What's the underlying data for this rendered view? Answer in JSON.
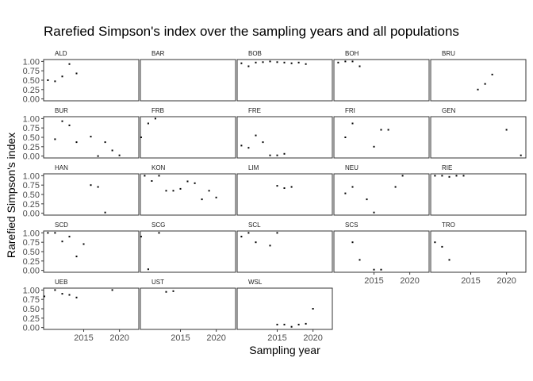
{
  "chart_data": {
    "type": "scatter",
    "title": "Rarefied Simpson's index over the sampling years and all populations",
    "xlabel": "Sampling year",
    "ylabel": "Rarefied Simpson's index",
    "xlim": [
      2009.4,
      2022.7
    ],
    "ylim": [
      -0.05,
      1.05
    ],
    "x_ticks": [
      2015,
      2020
    ],
    "x_tick_labels": [
      "2015",
      "2020"
    ],
    "y_ticks": [
      0,
      0.25,
      0.5,
      0.75,
      1
    ],
    "y_tick_labels": [
      "0.00",
      "0.25",
      "0.50",
      "0.75",
      "1.00"
    ],
    "facet_layout": {
      "columns": 5,
      "rows": 5
    },
    "facets": [
      {
        "name": "ALD",
        "points": [
          [
            2010,
            0.5
          ],
          [
            2011,
            0.47
          ],
          [
            2012,
            0.6
          ],
          [
            2013,
            0.93
          ],
          [
            2014,
            0.68
          ]
        ]
      },
      {
        "name": "BAR",
        "points": []
      },
      {
        "name": "BOB",
        "points": [
          [
            2010,
            0.95
          ],
          [
            2011,
            0.87
          ],
          [
            2012,
            0.97
          ],
          [
            2013,
            0.98
          ],
          [
            2014,
            1.0
          ],
          [
            2015,
            0.98
          ],
          [
            2016,
            0.97
          ],
          [
            2017,
            0.95
          ],
          [
            2018,
            0.97
          ],
          [
            2019,
            0.93
          ]
        ]
      },
      {
        "name": "BOH",
        "points": [
          [
            2010,
            0.97
          ],
          [
            2011,
            1.0
          ],
          [
            2012,
            1.0
          ],
          [
            2013,
            0.87
          ]
        ]
      },
      {
        "name": "BRU",
        "points": [
          [
            2016,
            0.25
          ],
          [
            2017,
            0.4
          ],
          [
            2018,
            0.65
          ]
        ]
      },
      {
        "name": "BUR",
        "points": [
          [
            2011,
            0.45
          ],
          [
            2012,
            0.93
          ],
          [
            2013,
            0.82
          ],
          [
            2014,
            0.37
          ],
          [
            2016,
            0.52
          ],
          [
            2017,
            0.0
          ],
          [
            2018,
            0.37
          ],
          [
            2019,
            0.15
          ],
          [
            2020,
            0.02
          ]
        ]
      },
      {
        "name": "FRB",
        "points": [
          [
            2009.5,
            0.5
          ],
          [
            2010.5,
            0.87
          ],
          [
            2011.5,
            1.0
          ]
        ]
      },
      {
        "name": "FRE",
        "points": [
          [
            2010,
            0.28
          ],
          [
            2011,
            0.22
          ],
          [
            2012,
            0.55
          ],
          [
            2013,
            0.37
          ],
          [
            2014,
            0.02
          ],
          [
            2015,
            0.02
          ],
          [
            2016,
            0.06
          ]
        ]
      },
      {
        "name": "FRI",
        "points": [
          [
            2011,
            0.5
          ],
          [
            2012,
            0.87
          ],
          [
            2015,
            0.25
          ],
          [
            2016,
            0.7
          ],
          [
            2017,
            0.7
          ]
        ]
      },
      {
        "name": "GEN",
        "points": [
          [
            2020,
            0.7
          ],
          [
            2022,
            0.02
          ]
        ]
      },
      {
        "name": "HAN",
        "points": [
          [
            2016,
            0.75
          ],
          [
            2017,
            0.7
          ],
          [
            2018,
            0.02
          ]
        ]
      },
      {
        "name": "KON",
        "points": [
          [
            2010,
            1.0
          ],
          [
            2011,
            0.86
          ],
          [
            2012,
            1.0
          ],
          [
            2013,
            0.6
          ],
          [
            2014,
            0.6
          ],
          [
            2015,
            0.65
          ],
          [
            2016,
            0.85
          ],
          [
            2017,
            0.8
          ],
          [
            2018,
            0.37
          ],
          [
            2019,
            0.6
          ],
          [
            2020,
            0.42
          ]
        ]
      },
      {
        "name": "LIM",
        "points": [
          [
            2015,
            0.73
          ],
          [
            2016,
            0.67
          ],
          [
            2017,
            0.7
          ]
        ]
      },
      {
        "name": "NEU",
        "points": [
          [
            2011,
            0.53
          ],
          [
            2012,
            0.7
          ],
          [
            2014,
            0.37
          ],
          [
            2015,
            0.02
          ],
          [
            2018,
            0.7
          ],
          [
            2019,
            1.0
          ]
        ]
      },
      {
        "name": "RIE",
        "points": [
          [
            2010,
            1.0
          ],
          [
            2011,
            1.0
          ],
          [
            2012,
            0.97
          ],
          [
            2013,
            1.0
          ],
          [
            2014,
            1.0
          ]
        ]
      },
      {
        "name": "SCD",
        "points": [
          [
            2010,
            1.0
          ],
          [
            2011,
            1.0
          ],
          [
            2012,
            0.77
          ],
          [
            2013,
            0.9
          ],
          [
            2014,
            0.37
          ],
          [
            2015,
            0.7
          ]
        ]
      },
      {
        "name": "SCG",
        "points": [
          [
            2009.5,
            0.9
          ],
          [
            2010.5,
            0.03
          ],
          [
            2012,
            1.0
          ]
        ]
      },
      {
        "name": "SCL",
        "points": [
          [
            2010,
            0.9
          ],
          [
            2011,
            1.0
          ],
          [
            2012,
            0.75
          ],
          [
            2014,
            0.66
          ],
          [
            2015,
            1.0
          ]
        ]
      },
      {
        "name": "SCS",
        "points": [
          [
            2012,
            0.75
          ],
          [
            2013,
            0.28
          ],
          [
            2015,
            0.02
          ],
          [
            2016,
            0.02
          ]
        ]
      },
      {
        "name": "TRO",
        "points": [
          [
            2010,
            0.75
          ],
          [
            2011,
            0.63
          ],
          [
            2012,
            0.28
          ]
        ]
      },
      {
        "name": "UEB",
        "points": [
          [
            2009.5,
            0.83
          ],
          [
            2011,
            1.0
          ],
          [
            2012,
            0.9
          ],
          [
            2013,
            0.87
          ],
          [
            2014,
            0.8
          ],
          [
            2019,
            1.0
          ]
        ]
      },
      {
        "name": "UST",
        "points": [
          [
            2013,
            0.95
          ],
          [
            2014,
            0.97
          ]
        ]
      },
      {
        "name": "WSL",
        "points": [
          [
            2015,
            0.08
          ],
          [
            2016,
            0.08
          ],
          [
            2017,
            0.02
          ],
          [
            2018,
            0.08
          ],
          [
            2019,
            0.1
          ],
          [
            2020,
            0.5
          ]
        ]
      }
    ],
    "grid": false,
    "legend": "none"
  }
}
